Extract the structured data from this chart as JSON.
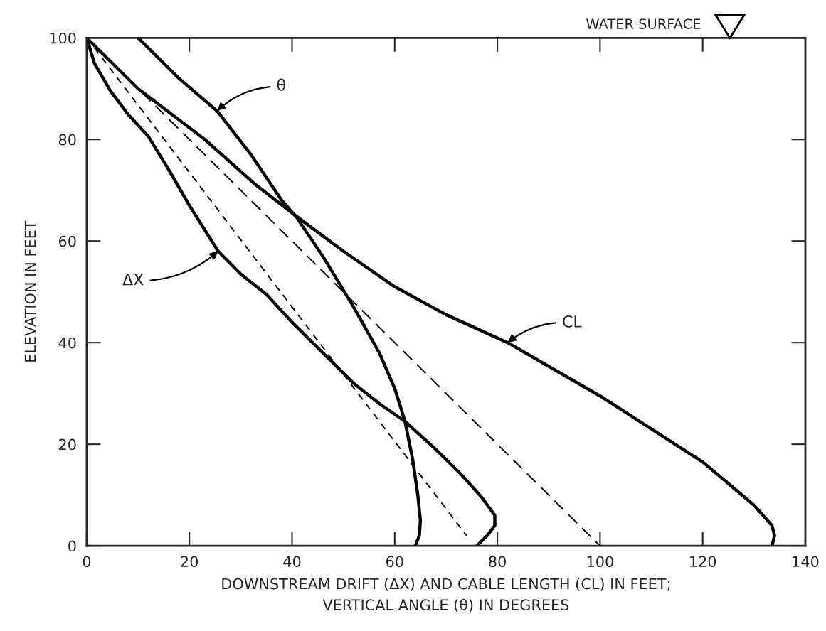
{
  "chart_data": {
    "type": "line",
    "xlabel": "DOWNSTREAM DRIFT (ΔX) AND CABLE LENGTH (CL) IN FEET;\nVERTICAL ANGLE (θ) IN DEGREES",
    "ylabel": "ELEVATION IN FEET",
    "xlim": [
      0,
      140
    ],
    "ylim": [
      0,
      100
    ],
    "xticks": [
      0,
      20,
      40,
      60,
      80,
      100,
      120,
      140
    ],
    "yticks": [
      0,
      20,
      40,
      60,
      80,
      100
    ],
    "grid": false,
    "legend": false,
    "marker": "none",
    "series": [
      {
        "color": "#000000",
        "line_style": "solid",
        "x": [
          10,
          18,
          25.4,
          32,
          38,
          41,
          46,
          52,
          57,
          60,
          62,
          63.5,
          64.5,
          65,
          64.8,
          64
        ],
        "values": [
          100,
          92,
          85.6,
          77,
          68,
          64.5,
          57,
          47,
          38,
          31,
          24.5,
          17,
          10,
          5,
          2,
          0
        ]
      },
      {
        "color": "#000000",
        "line_style": "solid",
        "x": [
          0,
          1.5,
          4.6,
          8,
          12,
          16,
          20,
          25.6,
          30,
          35,
          40,
          46,
          52,
          57,
          62,
          68,
          73,
          77,
          79.5,
          79.5,
          78,
          76
        ],
        "values": [
          100,
          95,
          89.6,
          85,
          80.6,
          74,
          67,
          58,
          53.5,
          49.5,
          44,
          38,
          32,
          28,
          24.5,
          19,
          14,
          9.5,
          6,
          4,
          2,
          0
        ]
      },
      {
        "color": "#000000",
        "line_style": "solid",
        "x": [
          0,
          5,
          10,
          23,
          33,
          42,
          50,
          60,
          70,
          82,
          100,
          120,
          130,
          133.5,
          134,
          133.5
        ],
        "values": [
          100,
          95,
          90,
          80,
          71,
          64,
          58,
          51,
          45.5,
          40,
          29.5,
          16.5,
          8,
          4,
          2,
          0
        ]
      },
      {
        "color": "#000000",
        "line_style": "dashed",
        "x": [
          0,
          74
        ],
        "values": [
          100,
          2
        ]
      },
      {
        "color": "#000000",
        "line_style": "dashed",
        "x": [
          0,
          100
        ],
        "values": [
          100,
          0
        ]
      }
    ],
    "annotations": [
      {
        "text": "θ",
        "x": 25.4,
        "y": 85.6
      },
      {
        "text": "ΔX",
        "x": 25.6,
        "y": 58
      },
      {
        "text": "CL",
        "x": 82,
        "y": 40
      },
      "WATER SURFACE"
    ]
  }
}
